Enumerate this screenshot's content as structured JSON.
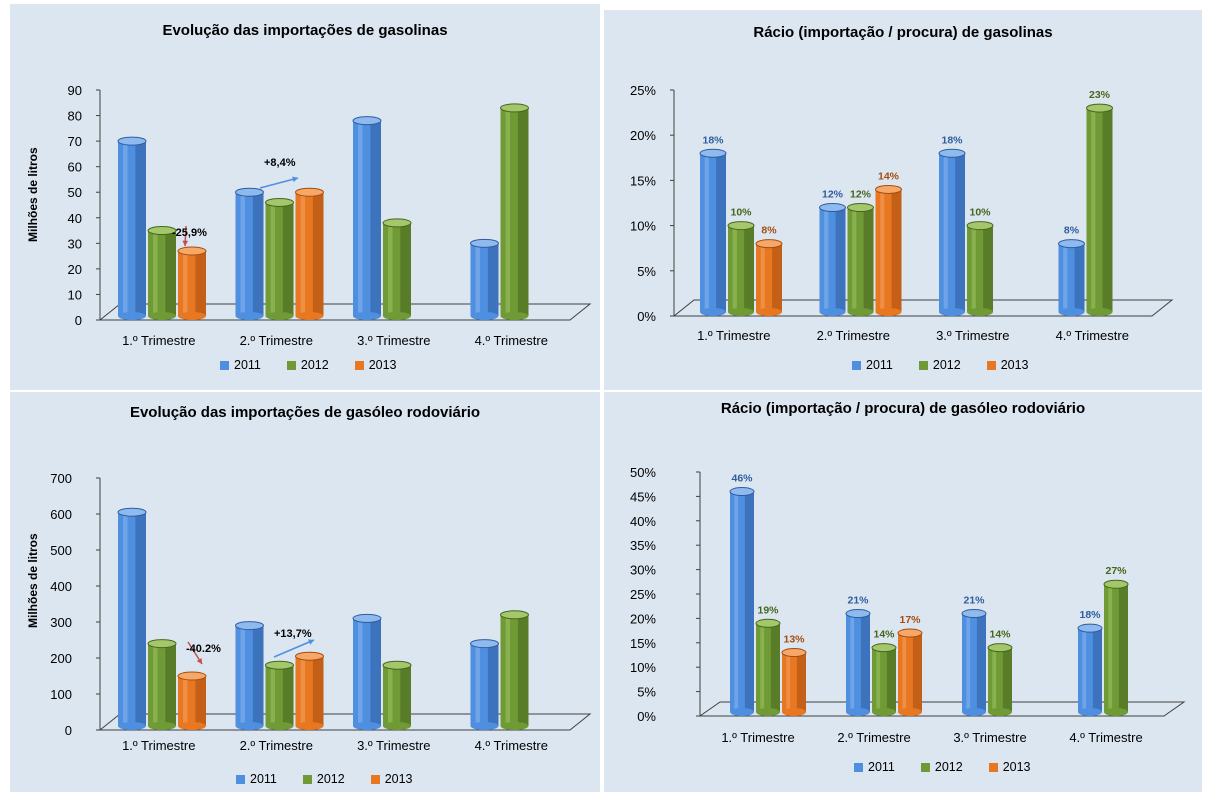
{
  "colors": {
    "2011": "#4f8fe0",
    "2012": "#6f9a35",
    "2013": "#e87722"
  },
  "chart_data": [
    {
      "type": "bar",
      "title": "Evolução das importações de gasolinas",
      "ylabel": "Milhões  de litros",
      "yticks": [
        "0",
        "10",
        "20",
        "30",
        "40",
        "50",
        "60",
        "70",
        "80",
        "90"
      ],
      "ylim": [
        0,
        90
      ],
      "categories": [
        "1.º Trimestre",
        "2.º Trimestre",
        "3.º Trimestre",
        "4.º Trimestre"
      ],
      "series": [
        {
          "name": "2011",
          "values": [
            70,
            50,
            78,
            30
          ]
        },
        {
          "name": "2012",
          "values": [
            35,
            46,
            38,
            83
          ]
        },
        {
          "name": "2013",
          "values": [
            27,
            50,
            null,
            null
          ]
        }
      ],
      "annotations": [
        "-25,9%",
        "+8,4%"
      ]
    },
    {
      "type": "bar",
      "title": "Rácio (importação / procura) de gasolinas",
      "ylabel": "",
      "yticks": [
        "0%",
        "5%",
        "10%",
        "15%",
        "20%",
        "25%"
      ],
      "ylim": [
        0,
        25
      ],
      "categories": [
        "1.º Trimestre",
        "2.º Trimestre",
        "3.º Trimestre",
        "4.º Trimestre"
      ],
      "series": [
        {
          "name": "2011",
          "values": [
            18,
            12,
            18,
            8
          ],
          "labels": [
            "18%",
            "12%",
            "18%",
            "8%"
          ]
        },
        {
          "name": "2012",
          "values": [
            10,
            12,
            10,
            23
          ],
          "labels": [
            "10%",
            "12%",
            "10%",
            "23%"
          ]
        },
        {
          "name": "2013",
          "values": [
            8,
            14,
            null,
            null
          ],
          "labels": [
            "8%",
            "14%",
            "",
            ""
          ]
        }
      ]
    },
    {
      "type": "bar",
      "title": "Evolução das importações de gasóleo rodoviário",
      "ylabel": "Milhões  de litros",
      "yticks": [
        "0",
        "100",
        "200",
        "300",
        "400",
        "500",
        "600",
        "700"
      ],
      "ylim": [
        0,
        700
      ],
      "categories": [
        "1.º Trimestre",
        "2.º Trimestre",
        "3.º Trimestre",
        "4.º Trimestre"
      ],
      "series": [
        {
          "name": "2011",
          "values": [
            605,
            290,
            310,
            240
          ]
        },
        {
          "name": "2012",
          "values": [
            240,
            180,
            180,
            320
          ]
        },
        {
          "name": "2013",
          "values": [
            150,
            205,
            null,
            null
          ]
        }
      ],
      "annotations": [
        "-40.2%",
        "+13,7%"
      ]
    },
    {
      "type": "bar",
      "title": "Rácio (importação / procura) de gasóleo rodoviário",
      "ylabel": "",
      "yticks": [
        "0%",
        "5%",
        "10%",
        "15%",
        "20%",
        "25%",
        "30%",
        "35%",
        "40%",
        "45%",
        "50%"
      ],
      "ylim": [
        0,
        50
      ],
      "categories": [
        "1.º Trimestre",
        "2.º Trimestre",
        "3.º Trimestre",
        "4.º Trimestre"
      ],
      "series": [
        {
          "name": "2011",
          "values": [
            46,
            21,
            21,
            18
          ],
          "labels": [
            "46%",
            "21%",
            "21%",
            "18%"
          ]
        },
        {
          "name": "2012",
          "values": [
            19,
            14,
            14,
            27
          ],
          "labels": [
            "19%",
            "14%",
            "14%",
            "27%"
          ]
        },
        {
          "name": "2013",
          "values": [
            13,
            17,
            null,
            null
          ],
          "labels": [
            "13%",
            "17%",
            "",
            ""
          ]
        }
      ]
    }
  ]
}
